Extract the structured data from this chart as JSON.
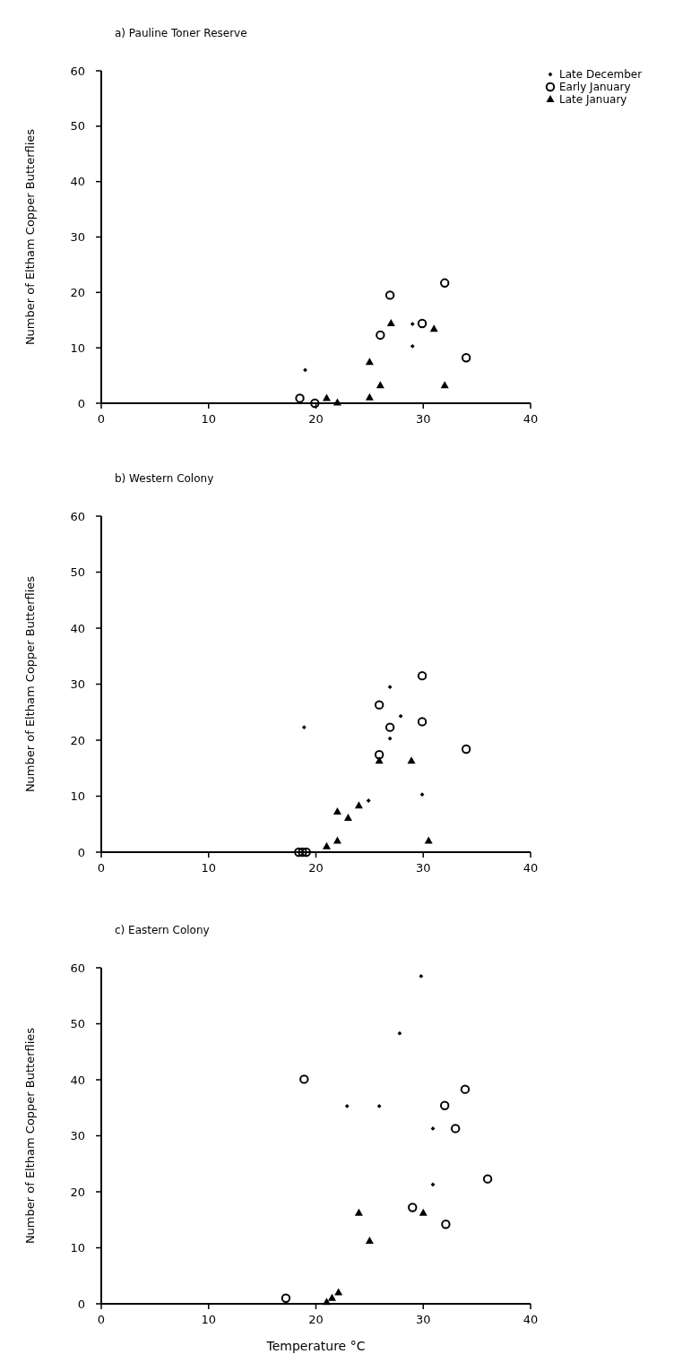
{
  "chart_data": [
    {
      "type": "scatter",
      "title": "a) Pauline Toner Reserve",
      "ylabel": "Number of Eltham Copper Butterflies",
      "xlim": [
        0,
        40
      ],
      "xticks": [
        0,
        10,
        20,
        30,
        40
      ],
      "ylim": [
        0,
        60
      ],
      "yticks": [
        0,
        10,
        20,
        30,
        40,
        50,
        60
      ],
      "grid": false,
      "legend": "top right",
      "series": [
        {
          "name": "Late December",
          "color": "#000000",
          "marker": "diamond",
          "x": [
            19,
            29,
            29
          ],
          "values": [
            6,
            14.3,
            10.3
          ]
        },
        {
          "name": "Early January",
          "color": "#000000",
          "marker": "circle",
          "x": [
            18.5,
            19.9,
            26,
            26.9,
            29.9,
            32,
            34
          ],
          "values": [
            0.9,
            0,
            12.3,
            19.5,
            14.4,
            21.7,
            8.2
          ]
        },
        {
          "name": "Late January",
          "color": "#000000",
          "marker": "triangle",
          "x": [
            21,
            22,
            25,
            25,
            26,
            27,
            31,
            32
          ],
          "values": [
            0.9,
            0.1,
            1,
            7.4,
            3.2,
            14.4,
            13.4,
            3.2
          ]
        }
      ]
    },
    {
      "type": "scatter",
      "title": "b) Western Colony",
      "ylabel": "Number of Eltham Copper Butterflies",
      "xlim": [
        0,
        40
      ],
      "xticks": [
        0,
        10,
        20,
        30,
        40
      ],
      "ylim": [
        0,
        60
      ],
      "yticks": [
        0,
        10,
        20,
        30,
        40,
        50,
        60
      ],
      "grid": false,
      "legend": false,
      "series": [
        {
          "color": "#000000",
          "marker": "diamond",
          "x": [
            18.9,
            26.9,
            27.9,
            26.9,
            24.9,
            29.9
          ],
          "values": [
            22.3,
            29.5,
            24.3,
            20.3,
            9.2,
            10.3
          ]
        },
        {
          "color": "#000000",
          "marker": "circle",
          "x": [
            18.4,
            18.75,
            19.1,
            25.9,
            26.9,
            29.9,
            29.9,
            25.9,
            34
          ],
          "values": [
            0,
            0,
            0,
            26.3,
            22.3,
            31.5,
            23.3,
            17.4,
            18.4
          ]
        },
        {
          "color": "#000000",
          "marker": "triangle",
          "x": [
            21,
            22,
            22,
            23,
            24,
            25.9,
            28.9,
            30.5
          ],
          "values": [
            1,
            2,
            7.2,
            6.1,
            8.3,
            16.3,
            16.3,
            2
          ]
        }
      ]
    },
    {
      "type": "scatter",
      "title": "c) Eastern Colony",
      "ylabel": "Number of Eltham Copper Butterflies",
      "xlabel": "Temperature °C",
      "xlim": [
        0,
        40
      ],
      "xticks": [
        0,
        10,
        20,
        30,
        40
      ],
      "ylim": [
        0,
        60
      ],
      "yticks": [
        0,
        10,
        20,
        30,
        40,
        50,
        60
      ],
      "grid": false,
      "legend": false,
      "series": [
        {
          "color": "#000000",
          "marker": "diamond",
          "x": [
            29.8,
            27.8,
            22.9,
            25.9,
            30.9,
            30.9
          ],
          "values": [
            58.5,
            48.3,
            35.3,
            35.3,
            31.3,
            21.3
          ]
        },
        {
          "color": "#000000",
          "marker": "circle",
          "x": [
            17.2,
            18.9,
            29,
            32,
            33,
            33.9,
            36,
            32.1
          ],
          "values": [
            1,
            40.1,
            17.2,
            35.4,
            31.3,
            38.3,
            22.3,
            14.2
          ]
        },
        {
          "color": "#000000",
          "marker": "triangle",
          "x": [
            21,
            21.5,
            22.1,
            24,
            25,
            30
          ],
          "values": [
            0.3,
            1,
            2,
            16.2,
            11.2,
            16.2
          ]
        }
      ]
    }
  ]
}
